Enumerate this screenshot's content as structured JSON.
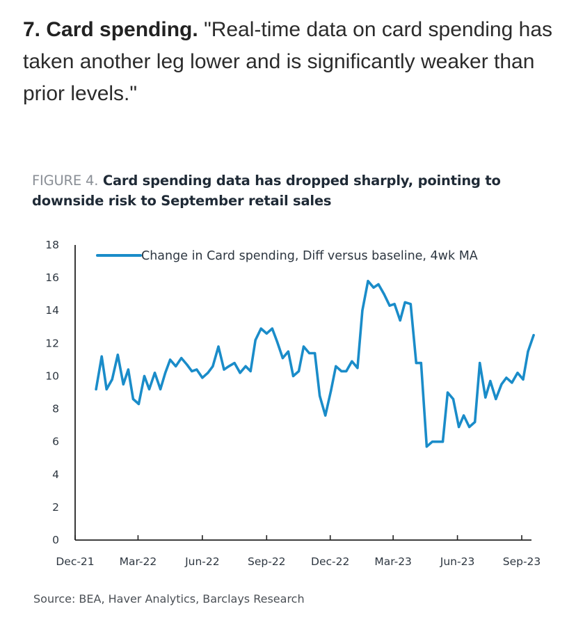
{
  "article": {
    "heading": "7. Card spending.",
    "quote": "\"Real-time data on card spending has taken another leg lower and is significantly weaker than prior levels.\""
  },
  "figure": {
    "label": "FIGURE 4.",
    "title": "Card spending data has dropped sharply, pointing to downside risk to September retail sales",
    "source": "Source: BEA, Haver Analytics, Barclays Research"
  },
  "colors": {
    "line": "#1a8cc9",
    "axis": "#222222",
    "text": "#2d3640"
  },
  "chart_data": {
    "type": "line",
    "title": "Card spending data has dropped sharply, pointing to downside risk to September retail sales",
    "xlabel": "",
    "ylabel": "",
    "ylim": [
      0,
      18
    ],
    "yticks": [
      "0",
      "2",
      "4",
      "6",
      "8",
      "10",
      "12",
      "14",
      "16",
      "18"
    ],
    "xticks": [
      "Dec-21",
      "Mar-22",
      "Jun-22",
      "Sep-22",
      "Dec-22",
      "Mar-23",
      "Jun-23",
      "Sep-23"
    ],
    "grid": false,
    "legend_position": "top-left",
    "series": [
      {
        "name": "Change in Card spending, Diff versus baseline, 4wk MA",
        "x": [
          "2021-12-31",
          "2022-01-08",
          "2022-01-15",
          "2022-01-23",
          "2022-01-31",
          "2022-02-08",
          "2022-02-15",
          "2022-02-22",
          "2022-03-02",
          "2022-03-10",
          "2022-03-17",
          "2022-03-25",
          "2022-04-02",
          "2022-04-09",
          "2022-04-16",
          "2022-04-24",
          "2022-05-02",
          "2022-05-10",
          "2022-05-17",
          "2022-05-24",
          "2022-06-01",
          "2022-06-09",
          "2022-06-16",
          "2022-06-24",
          "2022-07-02",
          "2022-07-09",
          "2022-07-17",
          "2022-07-25",
          "2022-08-02",
          "2022-08-09",
          "2022-08-16",
          "2022-08-24",
          "2022-09-01",
          "2022-09-09",
          "2022-09-16",
          "2022-09-24",
          "2022-10-02",
          "2022-10-09",
          "2022-10-17",
          "2022-10-24",
          "2022-11-01",
          "2022-11-09",
          "2022-11-16",
          "2022-11-24",
          "2022-12-02",
          "2022-12-09",
          "2022-12-17",
          "2022-12-24",
          "2023-01-01",
          "2023-01-09",
          "2023-01-16",
          "2023-01-24",
          "2023-02-01",
          "2023-02-08",
          "2023-02-16",
          "2023-02-24",
          "2023-03-03",
          "2023-03-11",
          "2023-03-18",
          "2023-03-26",
          "2023-04-03",
          "2023-04-10",
          "2023-04-18",
          "2023-04-26",
          "2023-05-03",
          "2023-05-11",
          "2023-05-18",
          "2023-05-26",
          "2023-06-03",
          "2023-06-10",
          "2023-06-18",
          "2023-06-26",
          "2023-07-03",
          "2023-07-11",
          "2023-07-18",
          "2023-07-26",
          "2023-08-03",
          "2023-08-10",
          "2023-08-18",
          "2023-08-26",
          "2023-09-03",
          "2023-09-10",
          "2023-09-18"
        ],
        "values": [
          9.2,
          11.2,
          9.2,
          9.8,
          11.3,
          9.5,
          10.4,
          8.6,
          8.3,
          10.0,
          9.2,
          10.2,
          9.2,
          10.2,
          11.0,
          10.6,
          11.1,
          10.7,
          10.3,
          10.4,
          9.9,
          10.2,
          10.6,
          11.8,
          10.4,
          10.6,
          10.8,
          10.2,
          10.6,
          10.3,
          12.2,
          12.9,
          12.6,
          12.9,
          12.1,
          11.1,
          11.5,
          10.0,
          10.3,
          11.8,
          11.4,
          11.4,
          8.8,
          7.6,
          9.1,
          10.6,
          10.3,
          10.3,
          10.9,
          10.5,
          14.0,
          15.8,
          15.4,
          15.6,
          15.0,
          14.3,
          14.4,
          13.4,
          14.5,
          14.4,
          10.8,
          10.8,
          5.7,
          6.0,
          6.0,
          6.0,
          9.0,
          8.6,
          6.9,
          7.6,
          6.9,
          7.2,
          10.8,
          8.7,
          9.7,
          8.6,
          9.5,
          9.9,
          9.6,
          10.2,
          9.8,
          11.5,
          12.5
        ]
      }
    ]
  }
}
